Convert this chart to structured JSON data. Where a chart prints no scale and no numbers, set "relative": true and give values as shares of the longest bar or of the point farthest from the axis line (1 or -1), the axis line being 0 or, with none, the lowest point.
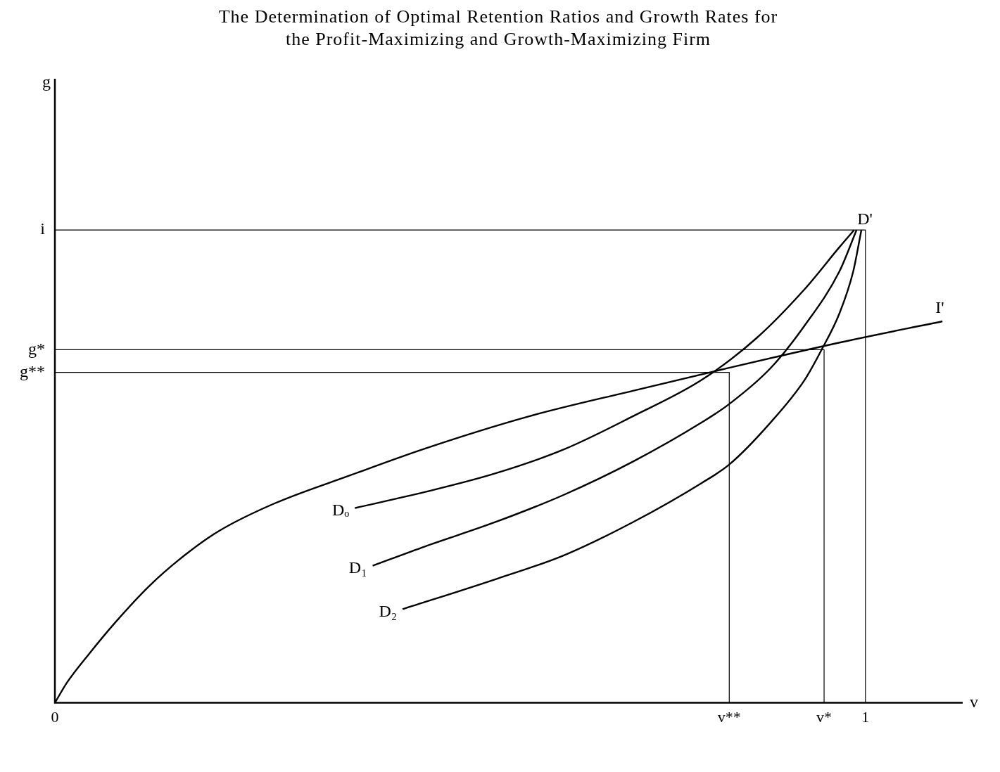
{
  "chart_data": {
    "type": "line",
    "title": "The Determination of Optimal Retention Ratios and Growth Rates for the Profit-Maximizing and Growth-Maximizing Firm",
    "xlabel": "v",
    "relative": true,
    "xlim": [
      0,
      1.12
    ],
    "xticks": [
      0,
      {
        "value": 0.832,
        "label": "v**"
      },
      {
        "value": 0.949,
        "label": "v*"
      },
      1
    ],
    "grid": false,
    "marker": "none",
    "series": [
      {
        "name": "I'",
        "color": "#000000",
        "x": [
          0,
          0.015,
          0.041,
          0.075,
          0.117,
          0.16,
          0.202,
          0.27,
          0.364,
          0.457,
          0.585,
          0.713,
          0.823,
          0.968,
          1.095
        ],
        "values": [
          0,
          0.043,
          0.101,
          0.171,
          0.248,
          0.312,
          0.363,
          0.421,
          0.481,
          0.538,
          0.606,
          0.66,
          0.705,
          0.762,
          0.807
        ]
      },
      {
        "name": "Dₒ",
        "color": "#000000",
        "x": [
          0.37,
          0.457,
          0.543,
          0.628,
          0.713,
          0.798,
          0.866,
          0.925,
          0.968,
          0.986
        ],
        "values": [
          0.412,
          0.446,
          0.485,
          0.536,
          0.606,
          0.683,
          0.772,
          0.875,
          0.964,
          1
        ]
      },
      {
        "name": "D₁",
        "color": "#000000",
        "x": [
          0.392,
          0.457,
          0.543,
          0.628,
          0.713,
          0.798,
          0.832,
          0.883,
          0.925,
          0.968,
          0.989
        ],
        "values": [
          0.29,
          0.331,
          0.382,
          0.44,
          0.51,
          0.593,
          0.632,
          0.708,
          0.798,
          0.913,
          1
        ]
      },
      {
        "name": "D₂",
        "color": "#000000",
        "x": [
          0.429,
          0.543,
          0.628,
          0.713,
          0.798,
          0.832,
          0.883,
          0.925,
          0.946,
          0.968,
          0.985,
          0.995
        ],
        "values": [
          0.198,
          0.261,
          0.312,
          0.382,
          0.465,
          0.504,
          0.593,
          0.683,
          0.747,
          0.824,
          0.913,
          1
        ]
      },
      {
        "name": "g**",
        "color": "#000000",
        "x": [
          0,
          0.832,
          0.832
        ],
        "values": [
          0.699,
          0.699,
          0
        ]
      },
      {
        "name": "g*",
        "color": "#000000",
        "x": [
          0,
          0.949,
          0.949
        ],
        "values": [
          0.747,
          0.747,
          0
        ]
      },
      {
        "name": "i",
        "color": "#000000",
        "x": [
          0,
          1,
          1
        ],
        "values": [
          1,
          1,
          0
        ]
      }
    ],
    "annotations": [
      "g",
      {
        "text": "D'",
        "x": 0.99,
        "y": 1
      }
    ]
  }
}
